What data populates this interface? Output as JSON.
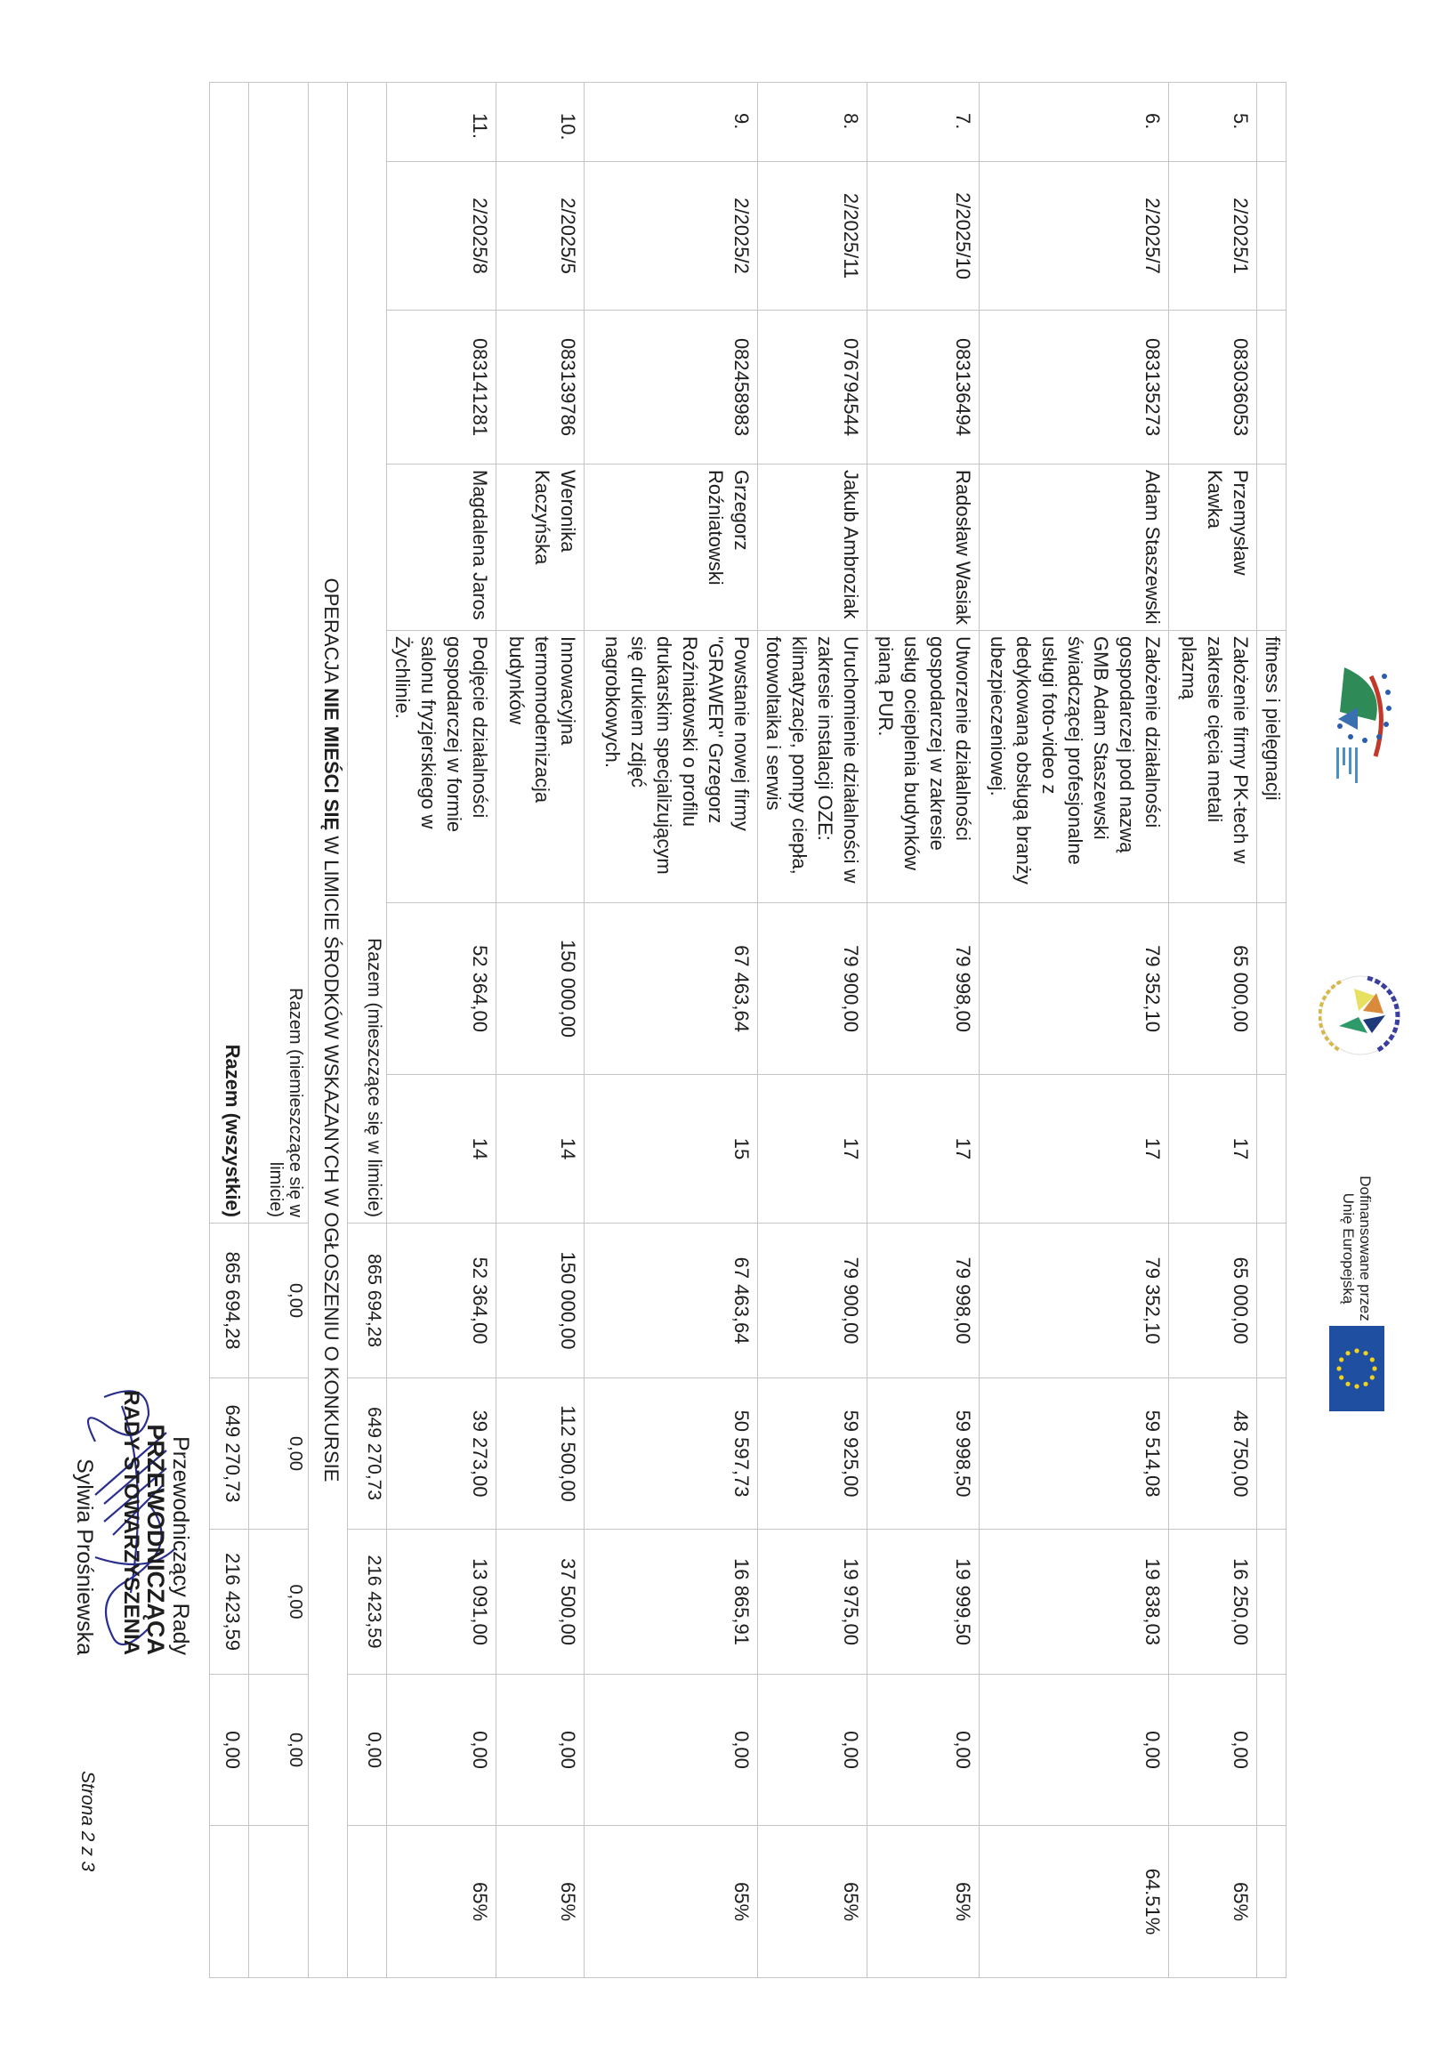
{
  "header": {
    "logo_left": "PROW 2023-2027 flag logo",
    "logo_center": "STOWARZYSZENIE ROZWOJU GMIN CENTRUM",
    "eu_text_line1": "Dofinansowane przez",
    "eu_text_line2": "Unię Europejską",
    "colors": {
      "eu_blue": "#1f4fa0",
      "eu_star": "#f2d21b"
    }
  },
  "continuation_text": "fitness i pielęgnacji",
  "rows": [
    {
      "lp": "5.",
      "nr": "2/2025/1",
      "numer": "083036053",
      "name": "Przemysław\nKawka",
      "title": "Założenie firmy PK-tech w\nzakresie cięcia metali\nplazmą",
      "kwota": "65 000,00",
      "punkty": "17",
      "koszt": "65 000,00",
      "dofinansowanie": "48 750,00",
      "wklad": "16 250,00",
      "inne": "0,00",
      "procent": "65%"
    },
    {
      "lp": "6.",
      "nr": "2/2025/7",
      "numer": "083135273",
      "name": "Adam Staszewski",
      "title": "Założenie działalności\ngospodarczej pod nazwą\nGMB Adam Staszewski\nświadczącej profesjonalne\nusługi foto-video z\ndedykowaną obsługą branży\nubezpieczeniowej.",
      "kwota": "79 352,10",
      "punkty": "17",
      "koszt": "79 352,10",
      "dofinansowanie": "59 514,08",
      "wklad": "19 838,03",
      "inne": "0,00",
      "procent": "64.51%"
    },
    {
      "lp": "7.",
      "nr": "2/2025/10",
      "numer": "083136494",
      "name": "Radosław Wasiak",
      "title": "Utworzenie działalności\ngospodarczej w zakresie\nusług ocieplenia budynków\npianą PUR.",
      "kwota": "79 998,00",
      "punkty": "17",
      "koszt": "79 998,00",
      "dofinansowanie": "59 998,50",
      "wklad": "19 999,50",
      "inne": "0,00",
      "procent": "65%"
    },
    {
      "lp": "8.",
      "nr": "2/2025/11",
      "numer": "076794544",
      "name": "Jakub Ambroziak",
      "title": "Uruchomienie działalności w\nzakresie instalacji OZE:\nklimatyzacje, pompy ciepła,\nfotowoltaika i serwis",
      "kwota": "79 900,00",
      "punkty": "17",
      "koszt": "79 900,00",
      "dofinansowanie": "59 925,00",
      "wklad": "19 975,00",
      "inne": "0,00",
      "procent": "65%"
    },
    {
      "lp": "9.",
      "nr": "2/2025/2",
      "numer": "082458983",
      "name": "Grzegorz\nRoźniatowski",
      "title": "Powstanie nowej firmy\n\"GRAWER\" Grzegorz\nRoźniatowski o profilu\ndrukarskim specjalizującym\nsię drukiem zdjęć\nnagrobkowych.",
      "kwota": "67 463,64",
      "punkty": "15",
      "koszt": "67 463,64",
      "dofinansowanie": "50 597,73",
      "wklad": "16 865,91",
      "inne": "0,00",
      "procent": "65%"
    },
    {
      "lp": "10.",
      "nr": "2/2025/5",
      "numer": "083139786",
      "name": "Weronika\nKaczyńska",
      "title": "Innowacyjna\ntermomodernizacja\nbudynków",
      "kwota": "150 000,00",
      "punkty": "14",
      "koszt": "150 000,00",
      "dofinansowanie": "112 500,00",
      "wklad": "37 500,00",
      "inne": "0,00",
      "procent": "65%"
    },
    {
      "lp": "11.",
      "nr": "2/2025/8",
      "numer": "083141281",
      "name": "Magdalena Jaros",
      "title": "Podjęcie działalności\ngospodarczej w formie\nsalonu fryzjerskiego w\nŻychlinie.",
      "kwota": "52 364,00",
      "punkty": "14",
      "koszt": "52 364,00",
      "dofinansowanie": "39 273,00",
      "wklad": "13 091,00",
      "inne": "0,00",
      "procent": "65%"
    }
  ],
  "totals": {
    "within_limit": {
      "label": "Razem (mieszczące się w limicie)",
      "koszt": "865 694,28",
      "dofinansowanie": "649 270,73",
      "wklad": "216 423,59",
      "inne": "0,00"
    },
    "banner": {
      "pre": "OPERACJA ",
      "bold": "NIE MIEŚCI SIĘ",
      "post": " W LIMICIE ŚRODKÓW WSKAZANYCH W OGŁOSZENIU O KONKURSIE"
    },
    "outside_limit": {
      "label": "Razem (niemieszczące się w\nlimicie)",
      "koszt": "0,00",
      "dofinansowanie": "0,00",
      "wklad": "0,00",
      "inne": "0,00"
    },
    "all": {
      "label": "Razem (wszystkie)",
      "koszt": "865 694,28",
      "dofinansowanie": "649 270,73",
      "wklad": "216 423,59",
      "inne": "0,00"
    }
  },
  "signature_block": {
    "line1": "Przewodniczący Rady",
    "line2": "PRZEWODNICZĄCA",
    "line3": "RADY STOWARZYSZENIA",
    "line4": "Sylwia Prośniewska",
    "ink_color": "#2a2f8f"
  },
  "page_number": "Strona 2 z 3"
}
